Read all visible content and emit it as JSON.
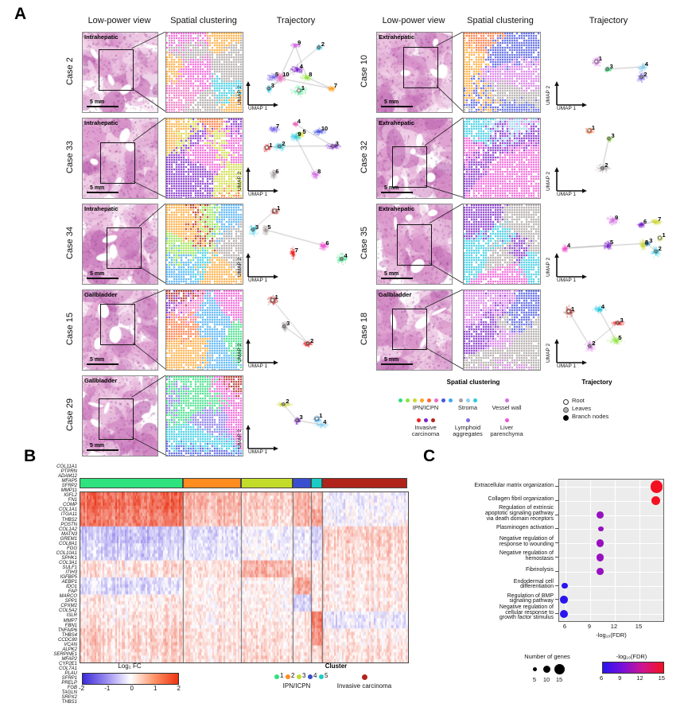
{
  "panels": {
    "a": "A",
    "b": "B",
    "c": "C"
  },
  "panel_a": {
    "headers": [
      "Low-power view",
      "Spatial clustering",
      "Trajectory"
    ],
    "axis": {
      "x": "UMAP 1",
      "y": "UMAP 2"
    },
    "scale_bar": "5 mm",
    "cases": [
      {
        "id": "Case 2",
        "site": "Intrahepatic",
        "col": 0,
        "row": 0,
        "traj_labels": [
          "1",
          "2",
          "3",
          "4",
          "5",
          "7",
          "8",
          "9",
          "10"
        ]
      },
      {
        "id": "Case 33",
        "site": "Intrahepatic",
        "col": 0,
        "row": 1,
        "traj_labels": [
          "1",
          "2",
          "3",
          "4",
          "5",
          "6",
          "7",
          "8",
          "9",
          "10"
        ]
      },
      {
        "id": "Case 34",
        "site": "Intrahepatic",
        "col": 0,
        "row": 2,
        "traj_labels": [
          "1",
          "3",
          "4",
          "5",
          "6",
          "7"
        ]
      },
      {
        "id": "Case 15",
        "site": "Gallbladder",
        "col": 0,
        "row": 3,
        "traj_labels": [
          "1",
          "2",
          "3"
        ]
      },
      {
        "id": "Case 29",
        "site": "Gallbladder",
        "col": 0,
        "row": 4,
        "traj_labels": [
          "1",
          "2",
          "3",
          "4"
        ]
      },
      {
        "id": "Case 10",
        "site": "Extrahepatic",
        "col": 1,
        "row": 0,
        "traj_labels": [
          "1",
          "2",
          "3",
          "4"
        ]
      },
      {
        "id": "Case 32",
        "site": "Extrahepatic",
        "col": 1,
        "row": 1,
        "traj_labels": [
          "1",
          "2",
          "3"
        ]
      },
      {
        "id": "Case 35",
        "site": "Extrahepatic",
        "col": 1,
        "row": 2,
        "traj_labels": [
          "1",
          "2",
          "3",
          "4",
          "5",
          "6",
          "7",
          "8",
          "9"
        ]
      },
      {
        "id": "Case 18",
        "site": "Gallbladder",
        "col": 1,
        "row": 3,
        "traj_labels": [
          "1",
          "2",
          "3",
          "4",
          "5"
        ]
      }
    ],
    "legend": {
      "spatial_title": "Spatial clustering",
      "trajectory_title": "Trajectory",
      "spatial_entries": [
        {
          "lines": [
            "IPN/ICPN"
          ],
          "colors": [
            "#2edd7a",
            "#90e23e",
            "#ccd832",
            "#ffa228",
            "#ff6a2e",
            "#ef6abe",
            "#4553e0",
            "#3fa9f5"
          ]
        },
        {
          "lines": [
            "Stroma"
          ],
          "colors": [
            "#a89f9f",
            "#8fd0ec",
            "#2cc9e0"
          ]
        },
        {
          "lines": [
            "Vessel wall"
          ],
          "colors": [
            "#d56fe3"
          ]
        },
        {
          "lines": [
            "Invasive",
            "carcinoma"
          ],
          "colors": [
            "#ee2222",
            "#7c22c8",
            "#b0231a"
          ]
        },
        {
          "lines": [
            "Lymphoid",
            "aggregates"
          ],
          "colors": [
            "#7d6ce8"
          ]
        },
        {
          "lines": [
            "Liver",
            "parenchyma"
          ],
          "colors": [
            "#ef52d3"
          ]
        }
      ],
      "trajectory_entries": [
        {
          "label": "Root",
          "fill": "#ffffff",
          "stroke": "#333333"
        },
        {
          "label": "Leaves",
          "fill": "#b0b0b0",
          "stroke": "#555555"
        },
        {
          "label": "Branch nodes",
          "fill": "#000000",
          "stroke": "#000000"
        }
      ]
    }
  },
  "panel_b": {
    "genes": [
      "COL11A1",
      "PTPRN",
      "ADAM12",
      "MFAP5",
      "SFRP2",
      "MMP11",
      "IGFL2",
      "FN1",
      "COMP",
      "COL1A1",
      "ITGA11",
      "THBS2",
      "POSTN",
      "COL1A2",
      "MATN3",
      "GREM1",
      "COL8A1",
      "FGG",
      "COL10A1",
      "SPHK1",
      "COL3A1",
      "SULF1",
      "ITIH3",
      "IGFBP5",
      "AEBP1",
      "IDO1",
      "FAP",
      "MARCO",
      "SPP1",
      "CPXM2",
      "COL5A2",
      "ISLR",
      "MMP7",
      "FBN1",
      "TNFAIP6",
      "THBS4",
      "CCDC80",
      "VCAN",
      "ALPK2",
      "SERPINE1",
      "MFAP2",
      "CYP2E1",
      "COL7A1",
      "PLAU",
      "SFRP1",
      "PRELP",
      "FGB",
      "TAGLN",
      "SRPX2",
      "THBS1"
    ],
    "cluster_bar": [
      {
        "cluster": "1",
        "color": "#2ee27d",
        "frac": 0.315
      },
      {
        "cluster": "2",
        "color": "#ff8c1e",
        "frac": 0.178
      },
      {
        "cluster": "3",
        "color": "#c3dc2a",
        "frac": 0.158
      },
      {
        "cluster": "4",
        "color": "#3a4fd0",
        "frac": 0.055
      },
      {
        "cluster": "5",
        "color": "#19ccc4",
        "frac": 0.034
      },
      {
        "cluster": "Invasive carcinoma",
        "color": "#b0231a",
        "frac": 0.26
      }
    ],
    "colorbar": {
      "title": "Log₂ FC",
      "ticks": [
        "-2",
        "-1",
        "0",
        "1",
        "2"
      ]
    },
    "cluster_legend": {
      "title": "Cluster",
      "items": [
        {
          "n": "1",
          "color": "#2ee27d"
        },
        {
          "n": "2",
          "color": "#ff8c1e"
        },
        {
          "n": "3",
          "color": "#c3dc2a"
        },
        {
          "n": "4",
          "color": "#3a4fd0"
        },
        {
          "n": "5",
          "color": "#19ccc4"
        }
      ],
      "group_label": "IPN/ICPN",
      "invasive_label": "Invasive carcinoma",
      "invasive_color": "#b0231a"
    },
    "heat_profile": [
      [
        1.6,
        0.8,
        0.5,
        0.9,
        0.7,
        -0.2
      ],
      [
        1.4,
        0.7,
        0.4,
        0.8,
        1.0,
        -0.1
      ],
      [
        -0.7,
        -0.4,
        -0.2,
        -0.3,
        -0.6,
        0.5
      ],
      [
        -0.5,
        -0.3,
        -0.1,
        -0.2,
        -0.4,
        0.4
      ],
      [
        0.3,
        0.3,
        0.8,
        0.5,
        0.3,
        0.3
      ],
      [
        -0.4,
        0.2,
        0.1,
        1.0,
        0.2,
        0.2
      ],
      [
        0.2,
        0.2,
        0.1,
        -0.5,
        0.3,
        0.2
      ],
      [
        0.3,
        0.2,
        0.2,
        0.2,
        1.5,
        -0.3
      ],
      [
        0.5,
        0.3,
        0.3,
        0.3,
        1.2,
        0.2
      ],
      [
        0.4,
        0.3,
        0.4,
        0.3,
        0.5,
        0.3
      ]
    ]
  },
  "panel_c": {
    "chart_data": {
      "type": "scatter",
      "xlabel": "-log₁₀(FDR)",
      "x_ticks": [
        6,
        9,
        12,
        15
      ],
      "xlim": [
        5,
        17.8
      ],
      "rows": [
        {
          "term": "Extracellular matrix organization",
          "lines": [
            "Extracellular matrix organization"
          ],
          "x": 17.1,
          "genes": 15,
          "fdr": 17
        },
        {
          "term": "Collagen fibril organization",
          "lines": [
            "Collagen fibril organization"
          ],
          "x": 17.0,
          "genes": 10,
          "fdr": 17
        },
        {
          "term": "Regulation of extrinsic apoptotic signaling pathway via death domain receptors",
          "lines": [
            "Regulation of extrinsic",
            "apoptotic signaling pathway",
            "via death domain receptors"
          ],
          "x": 10.2,
          "genes": 7,
          "fdr": 10
        },
        {
          "term": "Plasminogen activation",
          "lines": [
            "Plasminogen activation"
          ],
          "x": 10.3,
          "genes": 4,
          "fdr": 10
        },
        {
          "term": "Negative regulation of response to wounding",
          "lines": [
            "Negative regulation of",
            "response to wounding"
          ],
          "x": 10.2,
          "genes": 8,
          "fdr": 10
        },
        {
          "term": "Negative regulation of hemostasis",
          "lines": [
            "Negative regulation of",
            "hemostasis"
          ],
          "x": 10.2,
          "genes": 8,
          "fdr": 10
        },
        {
          "term": "Fibrinolysis",
          "lines": [
            "Fibrinolysis"
          ],
          "x": 10.2,
          "genes": 7,
          "fdr": 10
        },
        {
          "term": "Endodermal cell differentiation",
          "lines": [
            "Endodermal cell",
            "differentiation"
          ],
          "x": 5.9,
          "genes": 5,
          "fdr": 6
        },
        {
          "term": "Regulation of BMP signaling pathway",
          "lines": [
            "Regulation of BMP",
            "signaling pathway"
          ],
          "x": 5.8,
          "genes": 8,
          "fdr": 6
        },
        {
          "term": "Negative regulation of cellular response to growth factor stimulus",
          "lines": [
            "Negative regulation of",
            "cellular response to",
            "growth factor stimulus"
          ],
          "x": 5.8,
          "genes": 9,
          "fdr": 6
        }
      ],
      "legend_genes": {
        "title": "Number of genes",
        "sizes": [
          "5",
          "10",
          "15"
        ]
      },
      "legend_fdr": {
        "title": "-log₁₀(FDR)",
        "ticks": [
          "6",
          "9",
          "12",
          "15"
        ]
      }
    }
  }
}
